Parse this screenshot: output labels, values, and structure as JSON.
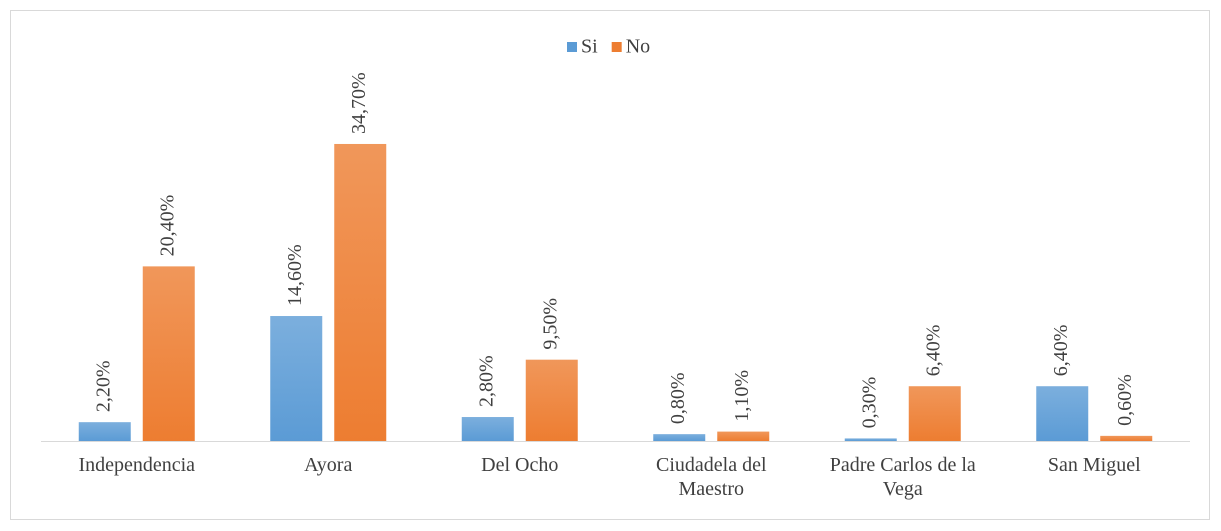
{
  "chart_data": {
    "type": "bar",
    "categories": [
      "Independencia",
      "Ayora",
      "Del Ocho",
      "Ciudadela del Maestro",
      "Padre Carlos de la Vega",
      "San Miguel"
    ],
    "series": [
      {
        "name": "Si",
        "color": "#5b9bd5",
        "values": [
          2.2,
          14.6,
          2.8,
          0.8,
          0.3,
          6.4
        ],
        "value_labels": [
          "2,20%",
          "14,60%",
          "2,80%",
          "0,80%",
          "0,30%",
          "6,40%"
        ]
      },
      {
        "name": "No",
        "color": "#ed7d31",
        "values": [
          20.4,
          34.7,
          9.5,
          1.1,
          6.4,
          0.6
        ],
        "value_labels": [
          "20,40%",
          "34,70%",
          "9,50%",
          "1,10%",
          "6,40%",
          "0,60%"
        ]
      }
    ],
    "legend": "top"
  }
}
